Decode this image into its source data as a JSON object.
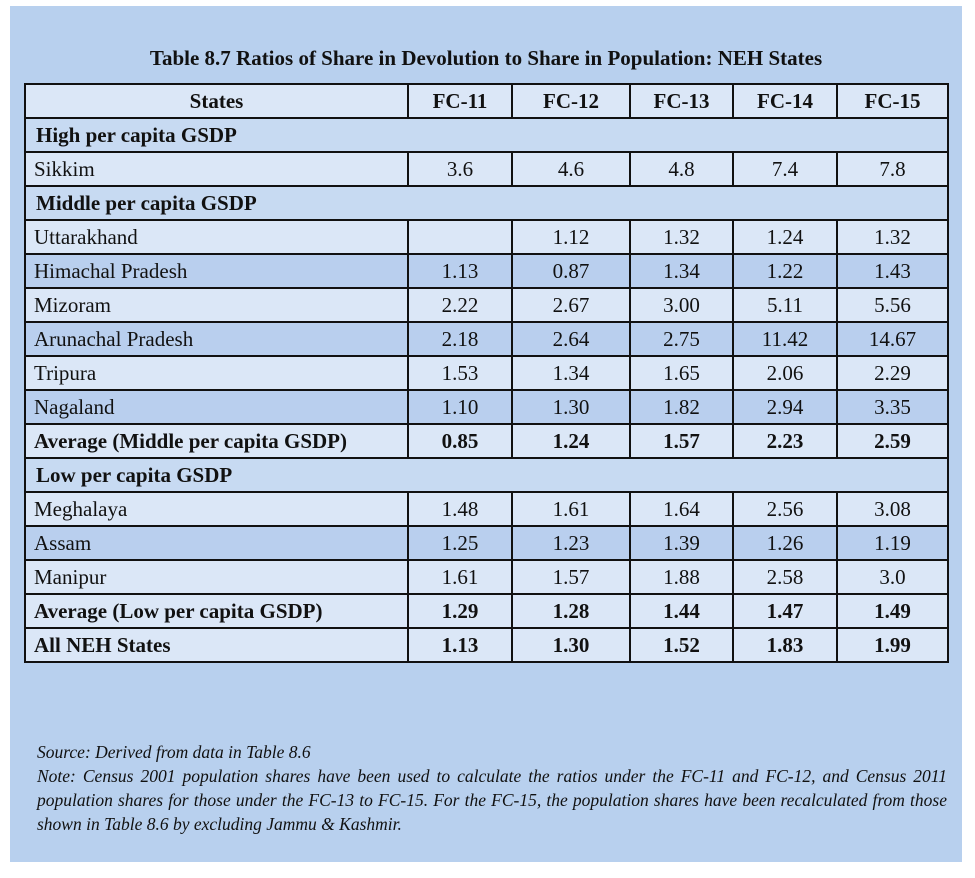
{
  "title": "Table 8.7 Ratios of Share in Devolution to Share in Population: NEH States",
  "columns": [
    "States",
    "FC-11",
    "FC-12",
    "FC-13",
    "FC-14",
    "FC-15"
  ],
  "sections": {
    "high": "High per capita GSDP",
    "middle": "Middle per capita GSDP",
    "low": "Low per capita GSDP"
  },
  "rows": {
    "sikkim": [
      "Sikkim",
      "3.6",
      "4.6",
      "4.8",
      "7.4",
      "7.8"
    ],
    "uttarakhand": [
      "Uttarakhand",
      "",
      "1.12",
      "1.32",
      "1.24",
      "1.32"
    ],
    "himachal": [
      "Himachal Pradesh",
      "1.13",
      "0.87",
      "1.34",
      "1.22",
      "1.43"
    ],
    "mizoram": [
      "Mizoram",
      "2.22",
      "2.67",
      "3.00",
      "5.11",
      "5.56"
    ],
    "arunachal": [
      "Arunachal Pradesh",
      "2.18",
      "2.64",
      "2.75",
      "11.42",
      "14.67"
    ],
    "tripura": [
      "Tripura",
      "1.53",
      "1.34",
      "1.65",
      "2.06",
      "2.29"
    ],
    "nagaland": [
      "Nagaland",
      "1.10",
      "1.30",
      "1.82",
      "2.94",
      "3.35"
    ],
    "avg_middle": [
      "Average (Middle per capita GSDP)",
      "0.85",
      "1.24",
      "1.57",
      "2.23",
      "2.59"
    ],
    "meghalaya": [
      "Meghalaya",
      "1.48",
      "1.61",
      "1.64",
      "2.56",
      "3.08"
    ],
    "assam": [
      "Assam",
      "1.25",
      "1.23",
      "1.39",
      "1.26",
      "1.19"
    ],
    "manipur": [
      "Manipur",
      "1.61",
      "1.57",
      "1.88",
      "2.58",
      "3.0"
    ],
    "avg_low": [
      "Average (Low per capita GSDP)",
      "1.29",
      "1.28",
      "1.44",
      "1.47",
      "1.49"
    ],
    "all_neh": [
      "All NEH States",
      "1.13",
      "1.30",
      "1.52",
      "1.83",
      "1.99"
    ]
  },
  "source": "Source: Derived from data in  Table 8.6",
  "note": "Note: Census 2001 population shares have been used to calculate the ratios under the FC-11 and FC-12, and Census 2011 population shares for those under the FC-13 to FC-15. For the FC-15, the population shares have been recalculated from those shown in Table 8.6 by excluding Jammu & Kashmir.",
  "colors": {
    "panel": "#b8d0ee",
    "row_light": "#dbe7f7",
    "row_mid": "#b9cfee",
    "border": "#111111"
  }
}
